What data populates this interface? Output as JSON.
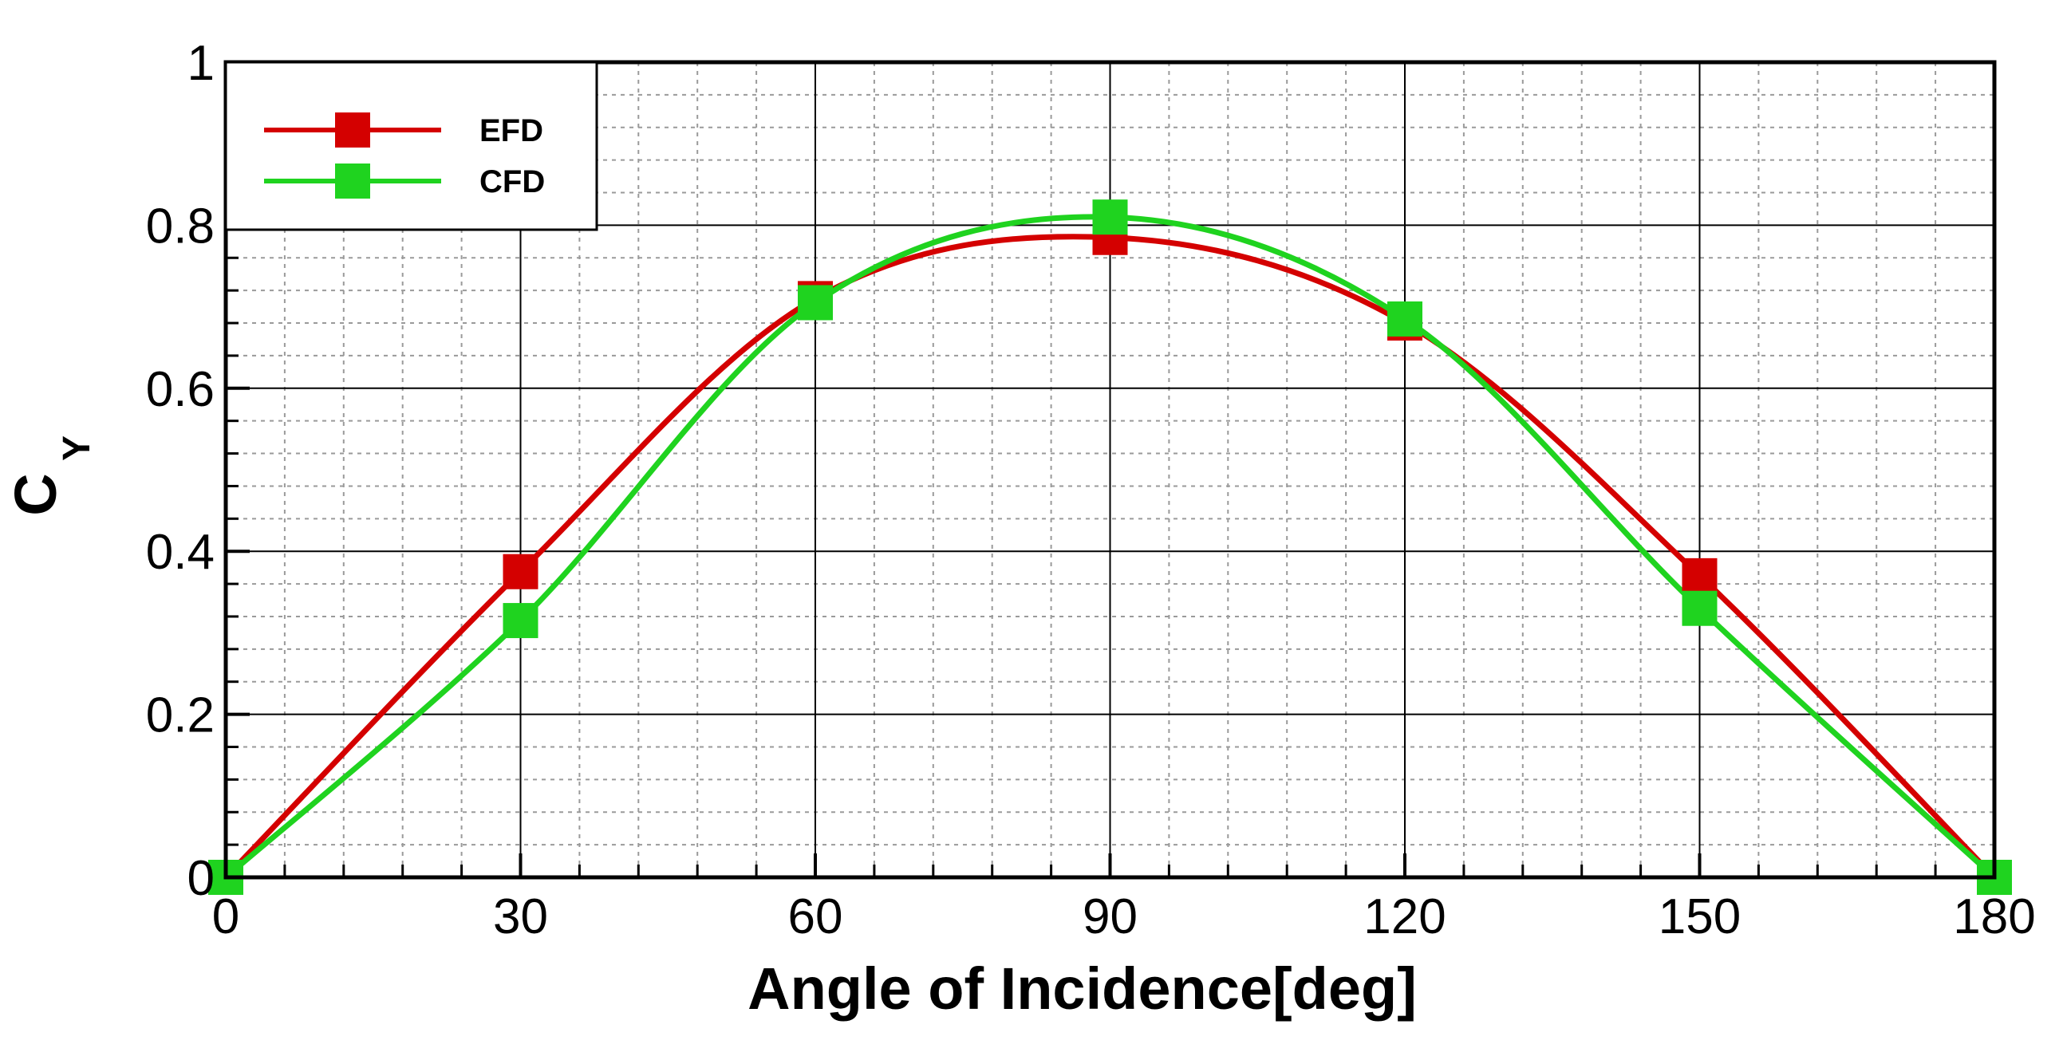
{
  "chart_data": {
    "type": "line",
    "title": "",
    "xlabel": "Angle of Incidence[deg]",
    "ylabel_main": "C",
    "ylabel_sub": "Y",
    "xlim": [
      0,
      180
    ],
    "ylim": [
      0,
      1
    ],
    "xticks": [
      0,
      30,
      60,
      90,
      120,
      150,
      180
    ],
    "xtick_labels": [
      "0",
      "30",
      "60",
      "90",
      "120",
      "150",
      "180"
    ],
    "yticks": [
      0,
      0.2,
      0.4,
      0.6,
      0.8,
      1
    ],
    "ytick_labels": [
      "0",
      "0.2",
      "0.4",
      "0.6",
      "0.8",
      "1"
    ],
    "grid": true,
    "legend_position": "top-left",
    "series": [
      {
        "name": "EFD",
        "color": "#d40000",
        "x": [
          0,
          30,
          60,
          90,
          120,
          150,
          180
        ],
        "values": [
          0,
          0.375,
          0.71,
          0.785,
          0.68,
          0.37,
          0
        ]
      },
      {
        "name": "CFD",
        "color": "#1fd31f",
        "x": [
          0,
          30,
          60,
          90,
          120,
          150,
          180
        ],
        "values": [
          0,
          0.315,
          0.705,
          0.81,
          0.685,
          0.33,
          0
        ]
      }
    ]
  }
}
